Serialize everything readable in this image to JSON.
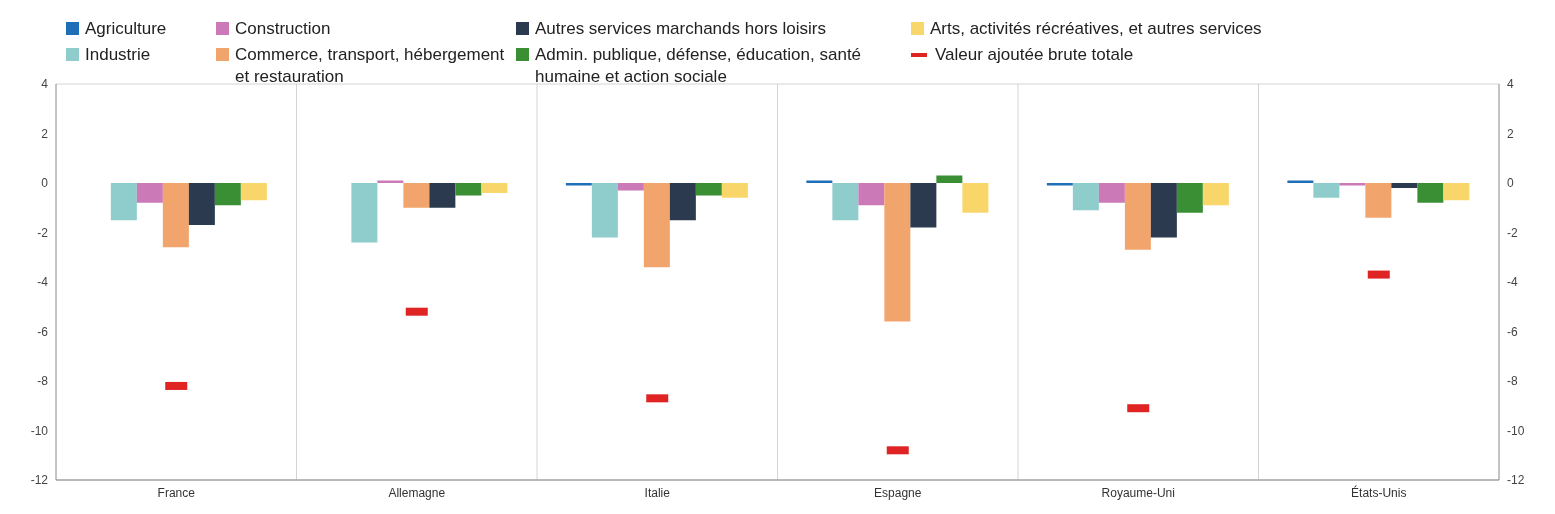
{
  "chart_data": {
    "type": "bar",
    "categories": [
      "France",
      "Allemagne",
      "Italie",
      "Espagne",
      "Royaume-Uni",
      "États-Unis"
    ],
    "series": [
      {
        "name": "Agriculture",
        "color": "#1f6fb8",
        "values": [
          0,
          0,
          -0.1,
          0.1,
          -0.1,
          0.1
        ]
      },
      {
        "name": "Industrie",
        "color": "#8ecdcc",
        "values": [
          -1.5,
          -2.4,
          -2.2,
          -1.5,
          -1.1,
          -0.6
        ]
      },
      {
        "name": "Construction",
        "color": "#cc79b8",
        "values": [
          -0.8,
          0.1,
          -0.3,
          -0.9,
          -0.8,
          -0.1
        ]
      },
      {
        "name": "Commerce, transport, hébergement et restauration",
        "color": "#f2a46d",
        "values": [
          -2.6,
          -1.0,
          -3.4,
          -5.6,
          -2.7,
          -1.4
        ]
      },
      {
        "name": "Autres services marchands hors loisirs",
        "color": "#2b3a4e",
        "values": [
          -1.7,
          -1.0,
          -1.5,
          -1.8,
          -2.2,
          -0.2
        ]
      },
      {
        "name": "Admin. publique, défense, éducation, santé humaine et action sociale",
        "color": "#3a8f35",
        "values": [
          -0.9,
          -0.5,
          -0.5,
          0.3,
          -1.2,
          -0.8
        ]
      },
      {
        "name": "Arts, activités récréatives, et autres services",
        "color": "#f9d66a",
        "values": [
          -0.7,
          -0.4,
          -0.6,
          -1.2,
          -0.9,
          -0.7
        ]
      },
      {
        "name": "Valeur ajoutée brute totale",
        "type": "scatter",
        "color": "#e02424",
        "values": [
          -8.2,
          -5.2,
          -8.7,
          -10.8,
          -9.1,
          -3.7
        ]
      }
    ],
    "ylim": [
      -12,
      4
    ],
    "yticks": [
      -12,
      -10,
      -8,
      -6,
      -4,
      -2,
      0,
      2,
      4
    ],
    "y2lim": [
      -12,
      4
    ],
    "y2ticks": [
      -12,
      -10,
      -8,
      -6,
      -4,
      -2,
      0,
      2,
      4
    ],
    "grid": true,
    "legend": "top"
  }
}
